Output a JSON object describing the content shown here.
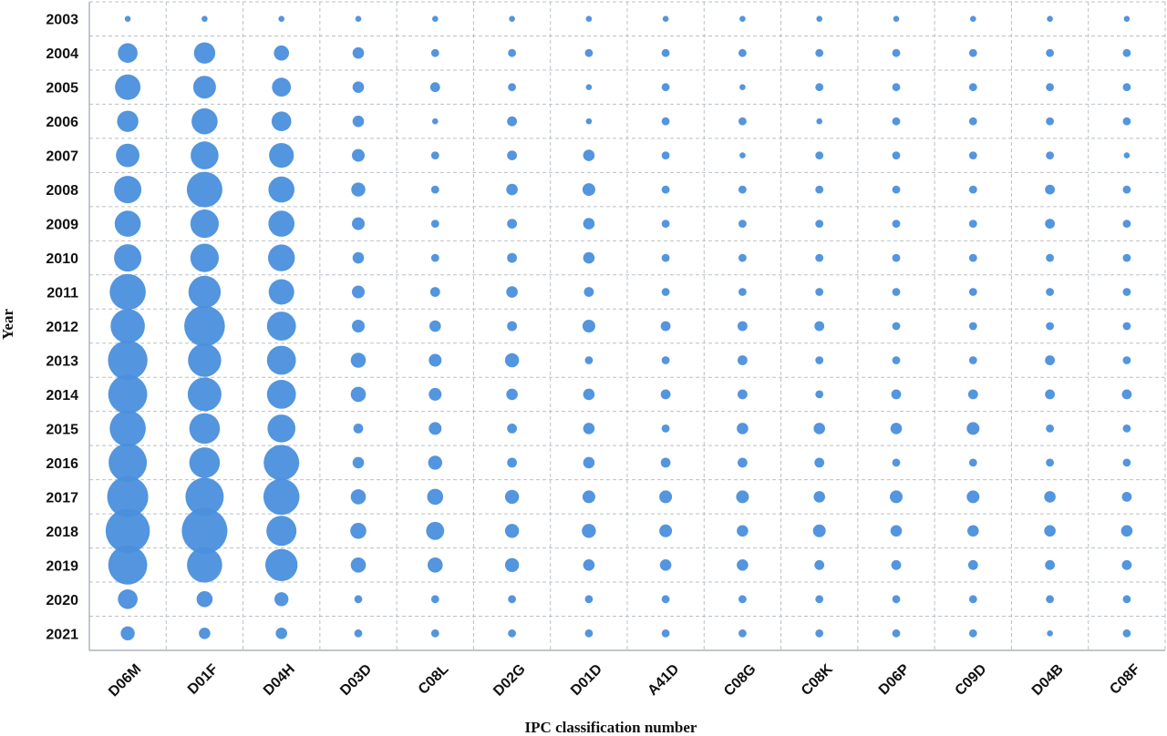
{
  "chart_data": {
    "type": "bubble",
    "xlabel": "IPC classification number",
    "ylabel": "Year",
    "grid": true,
    "bubble_color": "#4a8fdc",
    "categories": [
      "D06M",
      "D01F",
      "D04H",
      "D03D",
      "C08L",
      "D02G",
      "D01D",
      "A41D",
      "C08G",
      "C08K",
      "D06P",
      "C09D",
      "D04B",
      "C08F"
    ],
    "years": [
      "2003",
      "2004",
      "2005",
      "2006",
      "2007",
      "2008",
      "2009",
      "2010",
      "2011",
      "2012",
      "2013",
      "2014",
      "2015",
      "2016",
      "2017",
      "2018",
      "2019",
      "2020",
      "2021"
    ],
    "values": [
      [
        1,
        1,
        1,
        1,
        1,
        1,
        1,
        1,
        1,
        1,
        1,
        1,
        1,
        1
      ],
      [
        12,
        14,
        7,
        4,
        2,
        2,
        2,
        2,
        2,
        2,
        2,
        2,
        2,
        2
      ],
      [
        20,
        16,
        11,
        4,
        3,
        2,
        1,
        2,
        1,
        2,
        2,
        2,
        2,
        2
      ],
      [
        14,
        21,
        12,
        4,
        1,
        3,
        1,
        2,
        2,
        1,
        2,
        2,
        2,
        2
      ],
      [
        17,
        24,
        19,
        5,
        2,
        3,
        4,
        2,
        1,
        2,
        2,
        2,
        2,
        1
      ],
      [
        23,
        39,
        21,
        6,
        2,
        4,
        5,
        2,
        2,
        2,
        2,
        2,
        3,
        2
      ],
      [
        21,
        25,
        21,
        5,
        2,
        3,
        4,
        2,
        2,
        2,
        2,
        2,
        3,
        2
      ],
      [
        23,
        25,
        22,
        4,
        2,
        3,
        4,
        2,
        2,
        2,
        2,
        2,
        2,
        2
      ],
      [
        40,
        32,
        20,
        5,
        3,
        4,
        3,
        2,
        2,
        2,
        2,
        2,
        2,
        2
      ],
      [
        36,
        51,
        26,
        5,
        4,
        3,
        5,
        3,
        3,
        3,
        2,
        2,
        2,
        2
      ],
      [
        48,
        34,
        26,
        7,
        5,
        6,
        2,
        2,
        3,
        2,
        2,
        2,
        3,
        2
      ],
      [
        47,
        35,
        26,
        7,
        5,
        4,
        4,
        3,
        3,
        2,
        3,
        3,
        3,
        3
      ],
      [
        40,
        29,
        24,
        3,
        5,
        3,
        4,
        2,
        4,
        4,
        4,
        5,
        2,
        2
      ],
      [
        45,
        29,
        39,
        4,
        6,
        3,
        4,
        3,
        3,
        3,
        2,
        2,
        2,
        2
      ],
      [
        52,
        45,
        40,
        7,
        8,
        6,
        5,
        5,
        5,
        4,
        5,
        5,
        4,
        3
      ],
      [
        60,
        64,
        28,
        8,
        10,
        6,
        6,
        5,
        4,
        5,
        4,
        4,
        4,
        4
      ],
      [
        47,
        38,
        32,
        7,
        7,
        6,
        4,
        4,
        4,
        3,
        3,
        3,
        3,
        3
      ],
      [
        12,
        8,
        6,
        2,
        2,
        2,
        2,
        2,
        2,
        2,
        2,
        2,
        2,
        2
      ],
      [
        6,
        4,
        4,
        2,
        2,
        2,
        2,
        2,
        2,
        2,
        2,
        2,
        1,
        2
      ]
    ]
  }
}
